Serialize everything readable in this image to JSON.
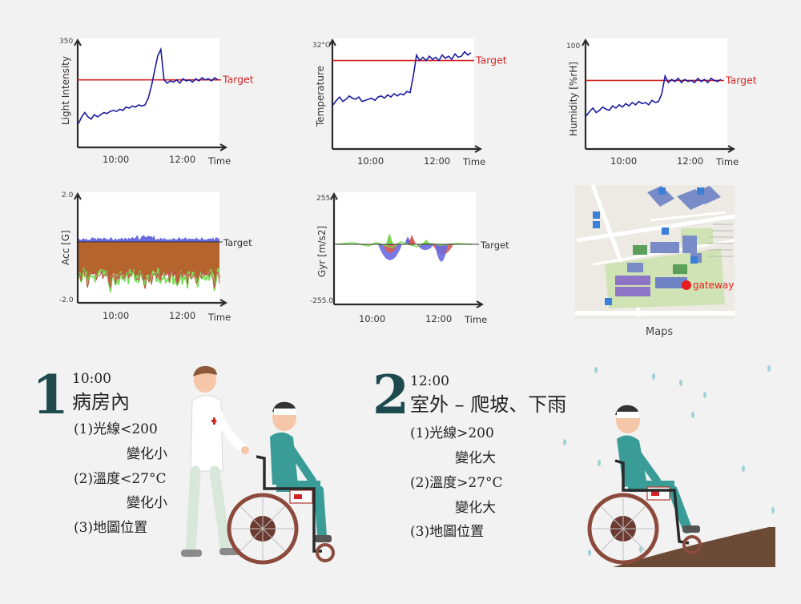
{
  "colors": {
    "line": "#1a1aa0",
    "target": "#d22424",
    "axis": "#2a2a2a",
    "acc_fill": "#b5642d",
    "acc_green": "#78e05a",
    "gyr_blue": "#6a6ae0",
    "gyr_red": "#d85c50",
    "gyr_green": "#78d84a",
    "teal_number": "#1e4a4e",
    "background": "#f2f2f2"
  },
  "chart_data": [
    {
      "type": "line",
      "ylabel": "Light Intensity",
      "ymax_label": "350",
      "xlabel": "Time",
      "x_ticks": [
        "10:00",
        "12:00"
      ],
      "target_label": "Target",
      "target": 0.62,
      "values": [
        0.22,
        0.28,
        0.32,
        0.28,
        0.26,
        0.3,
        0.28,
        0.3,
        0.32,
        0.31,
        0.33,
        0.34,
        0.33,
        0.35,
        0.34,
        0.37,
        0.36,
        0.38,
        0.37,
        0.39,
        0.38,
        0.39,
        0.45,
        0.56,
        0.7,
        0.84,
        0.9,
        0.62,
        0.59,
        0.61,
        0.6,
        0.62,
        0.59,
        0.63,
        0.61,
        0.62,
        0.6,
        0.63,
        0.61,
        0.64,
        0.62,
        0.63,
        0.61,
        0.64,
        0.62
      ]
    },
    {
      "type": "line",
      "ylabel": "Temperature",
      "ymax_label": "32°C",
      "xlabel": "Time",
      "x_ticks": [
        "10:00",
        "12:00"
      ],
      "target_label": "Target",
      "target": 0.8,
      "values": [
        0.4,
        0.44,
        0.47,
        0.43,
        0.45,
        0.48,
        0.46,
        0.45,
        0.47,
        0.43,
        0.44,
        0.45,
        0.46,
        0.44,
        0.47,
        0.48,
        0.46,
        0.49,
        0.47,
        0.5,
        0.48,
        0.5,
        0.49,
        0.52,
        0.51,
        0.66,
        0.85,
        0.8,
        0.83,
        0.8,
        0.84,
        0.81,
        0.83,
        0.8,
        0.85,
        0.82,
        0.84,
        0.81,
        0.86,
        0.83,
        0.84,
        0.88,
        0.85,
        0.87
      ]
    },
    {
      "type": "line",
      "ylabel": "Humidity [%rH]",
      "ymax_label": "100",
      "xlabel": "Time",
      "x_ticks": [
        "10:00",
        "12:00"
      ],
      "target_label": "Target",
      "target": 0.62,
      "values": [
        0.3,
        0.34,
        0.37,
        0.33,
        0.35,
        0.38,
        0.36,
        0.35,
        0.39,
        0.37,
        0.4,
        0.38,
        0.41,
        0.39,
        0.42,
        0.4,
        0.43,
        0.41,
        0.42,
        0.4,
        0.44,
        0.42,
        0.43,
        0.5,
        0.66,
        0.6,
        0.63,
        0.61,
        0.64,
        0.6,
        0.63,
        0.61,
        0.62,
        0.6,
        0.64,
        0.61,
        0.63,
        0.6,
        0.64,
        0.62,
        0.61,
        0.63
      ]
    },
    {
      "type": "area",
      "ylabel": "Acc [G]",
      "ymax_label": "2.0",
      "ymin_label": "-2.0",
      "xlabel": "Time",
      "x_ticks": [
        "10:00",
        "12:00"
      ],
      "target_label": "Target"
    },
    {
      "type": "area",
      "ylabel": "Gyr [m/s2]",
      "ymax_label": "255.0",
      "ymin_label": "-255.0",
      "xlabel": "Time",
      "x_ticks": [
        "10:00",
        "12:00"
      ],
      "target_label": "Target"
    }
  ],
  "map": {
    "caption": "Maps",
    "marker_label": "gateway",
    "marker_color": "#e81c1c"
  },
  "scenes": [
    {
      "number": "1",
      "time": "10:00",
      "title": "病房內",
      "lines": [
        "(1)光線<200",
        "變化小",
        "(2)溫度<27°C",
        "變化小",
        "(3)地圖位置"
      ]
    },
    {
      "number": "2",
      "time": "12:00",
      "title": "室外 – 爬坡、下雨",
      "lines": [
        "(1)光線>200",
        "變化大",
        "(2)溫度>27°C",
        "變化大",
        "(3)地圖位置"
      ]
    }
  ]
}
